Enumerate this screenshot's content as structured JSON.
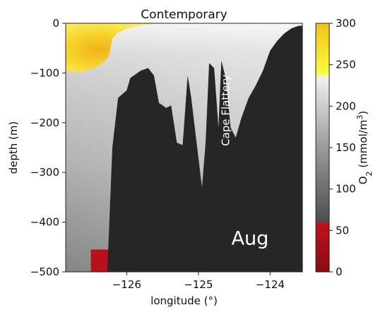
{
  "chart_data": {
    "type": "heatmap",
    "title": "Contemporary",
    "xlabel": "longitude (°)",
    "ylabel": "depth (m)",
    "xlim": [
      -126.85,
      -123.55
    ],
    "ylim": [
      -500,
      0
    ],
    "x_ticks": [
      -126,
      -125,
      -124
    ],
    "x_tick_labels": [
      "−126",
      "−125",
      "−124"
    ],
    "y_ticks": [
      0,
      -100,
      -200,
      -300,
      -400,
      -500
    ],
    "y_tick_labels": [
      "0",
      "−100",
      "−200",
      "−300",
      "−400",
      "−500"
    ],
    "colorbar": {
      "label_text": "O",
      "label_sub": "2",
      "label_units": " (mmol/m",
      "label_sup": "3",
      "label_close": ")",
      "range": [
        0,
        300
      ],
      "ticks": [
        0,
        50,
        100,
        150,
        200,
        250,
        300
      ],
      "tick_labels": [
        "0",
        "50",
        "100",
        "150",
        "200",
        "250",
        "300"
      ],
      "stops": [
        {
          "value": 0,
          "color": "#8c0a14"
        },
        {
          "value": 60,
          "color": "#c0121f"
        },
        {
          "value": 60,
          "color": "#4d4d4d"
        },
        {
          "value": 150,
          "color": "#9a9a9a"
        },
        {
          "value": 235,
          "color": "#f0f0f0"
        },
        {
          "value": 240,
          "color": "#fbfb3c"
        },
        {
          "value": 300,
          "color": "#f2c21b"
        }
      ]
    },
    "annotations": {
      "feature_label": "Cape Flattery",
      "month_label": "Aug"
    },
    "bathymetry": {
      "longitude": [
        -126.85,
        -126.27,
        -126.2,
        -126.12,
        -126.0,
        -125.95,
        -125.85,
        -125.8,
        -125.7,
        -125.62,
        -125.55,
        -125.45,
        -125.38,
        -125.3,
        -125.22,
        -125.15,
        -125.1,
        -125.05,
        -124.95,
        -124.9,
        -124.85,
        -124.78,
        -124.72,
        -124.68,
        -124.62,
        -124.55,
        -124.48,
        -124.4,
        -124.3,
        -124.2,
        -124.1,
        -124.0,
        -123.9,
        -123.8,
        -123.7,
        -123.6,
        -123.55
      ],
      "depth": [
        -500,
        -500,
        -250,
        -150,
        -135,
        -110,
        -100,
        -95,
        -90,
        -105,
        -160,
        -170,
        -165,
        -240,
        -245,
        -105,
        -150,
        -210,
        -330,
        -240,
        -80,
        -90,
        -210,
        -75,
        -110,
        -210,
        -230,
        -190,
        -150,
        -125,
        -95,
        -55,
        -35,
        -20,
        -10,
        -5,
        -5
      ]
    },
    "o2_zones": {
      "high_oxygen_patch": {
        "lon_range": [
          -126.85,
          -126.2
        ],
        "depth_range": [
          0,
          -95
        ],
        "value": 280
      },
      "low_oxygen_patch": {
        "lon_range": [
          -126.5,
          -126.25
        ],
        "depth_range": [
          -455,
          -500
        ],
        "value": 40
      }
    },
    "land_fill_color": "#262626"
  }
}
